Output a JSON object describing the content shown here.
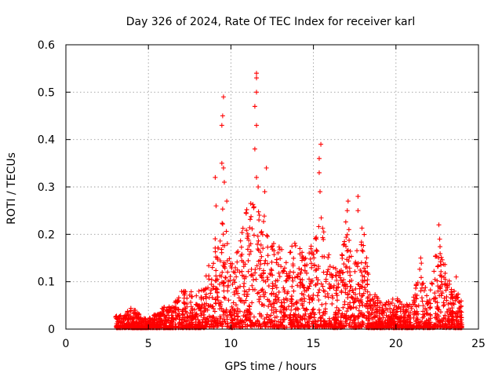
{
  "chart_data": {
    "type": "scatter",
    "title": "Day 326 of 2024, Rate Of TEC Index for receiver karl",
    "xlabel": "GPS time / hours",
    "ylabel": "ROTI / TECUs",
    "xlim": [
      0,
      25
    ],
    "ylim": [
      0,
      0.6
    ],
    "xticks": [
      "0",
      "5",
      "10",
      "15",
      "20",
      "25"
    ],
    "xtick_values": [
      0,
      5,
      10,
      15,
      20,
      25
    ],
    "yticks": [
      "0",
      "0.1",
      "0.2",
      "0.3",
      "0.4",
      "0.5",
      "0.6"
    ],
    "ytick_values": [
      0,
      0.1,
      0.2,
      0.3,
      0.4,
      0.5,
      0.6
    ],
    "grid": true,
    "marker": "+",
    "series": [
      {
        "name": "ROTI",
        "color": "#ff0000",
        "envelope": {
          "description": "approximate upper envelope of the dense point cloud (hour, ROTI)",
          "x": [
            3.0,
            3.5,
            4.0,
            4.5,
            5.0,
            5.5,
            6.0,
            6.5,
            7.0,
            7.5,
            8.0,
            8.5,
            9.0,
            9.5,
            10.0,
            10.5,
            11.0,
            11.5,
            12.0,
            12.5,
            13.0,
            13.5,
            14.0,
            14.5,
            15.0,
            15.5,
            16.0,
            16.5,
            17.0,
            17.5,
            18.0,
            18.5,
            19.0,
            19.5,
            20.0,
            20.5,
            21.0,
            21.5,
            22.0,
            22.5,
            23.0,
            23.5,
            24.0
          ],
          "y": [
            0.03,
            0.03,
            0.05,
            0.03,
            0.025,
            0.035,
            0.05,
            0.05,
            0.09,
            0.09,
            0.08,
            0.12,
            0.2,
            0.27,
            0.15,
            0.18,
            0.27,
            0.28,
            0.25,
            0.2,
            0.18,
            0.16,
            0.22,
            0.16,
            0.2,
            0.26,
            0.16,
            0.12,
            0.25,
            0.15,
            0.24,
            0.08,
            0.07,
            0.06,
            0.07,
            0.05,
            0.07,
            0.15,
            0.07,
            0.2,
            0.14,
            0.1,
            0.06
          ]
        },
        "outliers": [
          {
            "x": 9.55,
            "y": 0.49
          },
          {
            "x": 9.5,
            "y": 0.45
          },
          {
            "x": 9.45,
            "y": 0.43
          },
          {
            "x": 9.45,
            "y": 0.35
          },
          {
            "x": 9.55,
            "y": 0.34
          },
          {
            "x": 9.6,
            "y": 0.31
          },
          {
            "x": 9.05,
            "y": 0.32
          },
          {
            "x": 9.1,
            "y": 0.26
          },
          {
            "x": 9.75,
            "y": 0.27
          },
          {
            "x": 11.55,
            "y": 0.54
          },
          {
            "x": 11.55,
            "y": 0.53
          },
          {
            "x": 11.55,
            "y": 0.5
          },
          {
            "x": 11.45,
            "y": 0.47
          },
          {
            "x": 11.55,
            "y": 0.43
          },
          {
            "x": 11.45,
            "y": 0.38
          },
          {
            "x": 11.55,
            "y": 0.32
          },
          {
            "x": 11.65,
            "y": 0.3
          },
          {
            "x": 12.15,
            "y": 0.34
          },
          {
            "x": 12.05,
            "y": 0.29
          },
          {
            "x": 15.45,
            "y": 0.39
          },
          {
            "x": 15.35,
            "y": 0.36
          },
          {
            "x": 15.35,
            "y": 0.33
          },
          {
            "x": 15.4,
            "y": 0.29
          },
          {
            "x": 17.1,
            "y": 0.27
          },
          {
            "x": 17.05,
            "y": 0.25
          },
          {
            "x": 17.15,
            "y": 0.21
          },
          {
            "x": 17.7,
            "y": 0.28
          },
          {
            "x": 17.7,
            "y": 0.25
          },
          {
            "x": 22.6,
            "y": 0.22
          },
          {
            "x": 22.65,
            "y": 0.19
          },
          {
            "x": 21.5,
            "y": 0.15
          },
          {
            "x": 23.65,
            "y": 0.11
          }
        ]
      }
    ]
  }
}
